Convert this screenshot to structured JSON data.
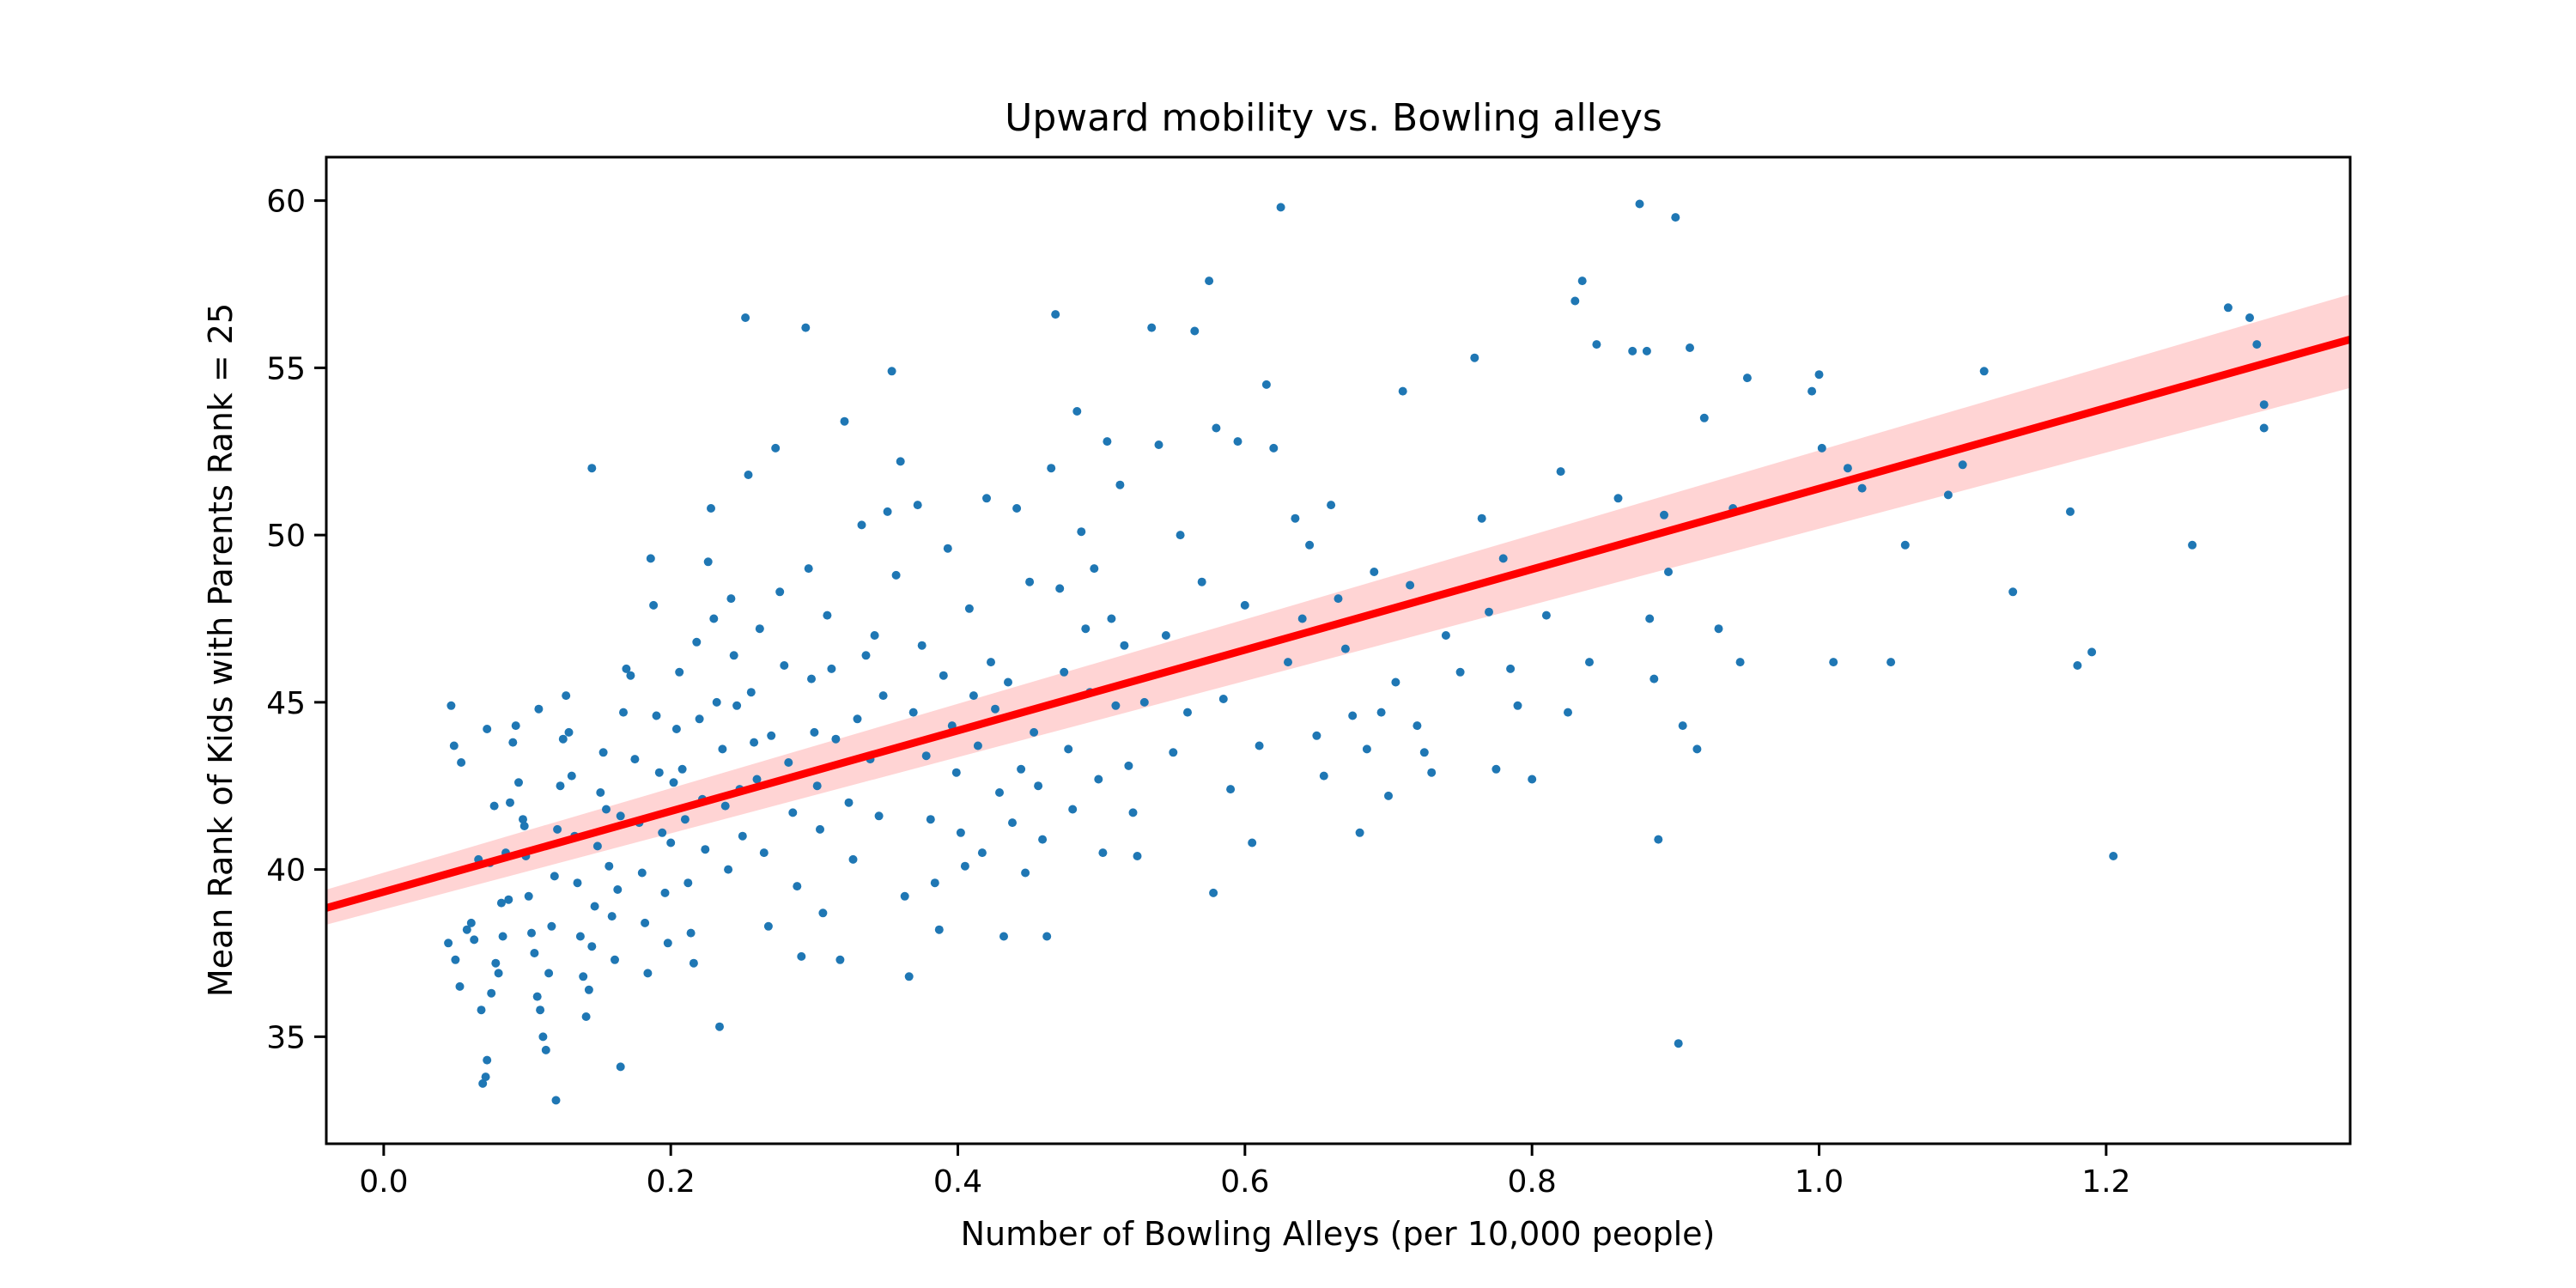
{
  "chart_data": {
    "type": "scatter",
    "title": "Upward mobility vs. Bowling alleys",
    "xlabel": "Number of Bowling Alleys (per 10,000 people)",
    "ylabel": "Mean Rank of Kids with Parents Rank = 25",
    "xlim": [
      -0.04,
      1.37
    ],
    "ylim": [
      31.8,
      61.3
    ],
    "x_ticks": [
      0.0,
      0.2,
      0.4,
      0.6,
      0.8,
      1.0,
      1.2
    ],
    "x_tick_labels": [
      "0.0",
      "0.2",
      "0.4",
      "0.6",
      "0.8",
      "1.0",
      "1.2"
    ],
    "y_ticks": [
      35,
      40,
      45,
      50,
      55,
      60
    ],
    "y_tick_labels": [
      "35",
      "40",
      "45",
      "50",
      "55",
      "60"
    ],
    "grid": false,
    "colors": {
      "points": "#1f77b4",
      "line": "#ff0000",
      "band": "#ffcccc"
    },
    "regression": {
      "x": [
        -0.04,
        1.37
      ],
      "y": [
        38.85,
        55.85
      ],
      "ci_lower": [
        38.35,
        54.4
      ],
      "ci_upper": [
        39.4,
        57.2
      ]
    },
    "points": [
      [
        0.047,
        44.9
      ],
      [
        0.049,
        43.7
      ],
      [
        0.054,
        43.2
      ],
      [
        0.061,
        38.4
      ],
      [
        0.066,
        40.3
      ],
      [
        0.072,
        44.2
      ],
      [
        0.045,
        37.8
      ],
      [
        0.05,
        37.3
      ],
      [
        0.053,
        36.5
      ],
      [
        0.058,
        38.2
      ],
      [
        0.063,
        37.9
      ],
      [
        0.068,
        35.8
      ],
      [
        0.069,
        33.6
      ],
      [
        0.071,
        33.8
      ],
      [
        0.072,
        34.3
      ],
      [
        0.075,
        36.3
      ],
      [
        0.078,
        37.2
      ],
      [
        0.082,
        39.0
      ],
      [
        0.085,
        40.5
      ],
      [
        0.088,
        42.0
      ],
      [
        0.09,
        43.8
      ],
      [
        0.092,
        44.3
      ],
      [
        0.094,
        42.6
      ],
      [
        0.097,
        41.5
      ],
      [
        0.099,
        40.4
      ],
      [
        0.101,
        39.2
      ],
      [
        0.103,
        38.1
      ],
      [
        0.105,
        37.5
      ],
      [
        0.107,
        36.2
      ],
      [
        0.109,
        35.8
      ],
      [
        0.111,
        35.0
      ],
      [
        0.113,
        34.6
      ],
      [
        0.115,
        36.9
      ],
      [
        0.117,
        38.3
      ],
      [
        0.119,
        39.8
      ],
      [
        0.121,
        41.2
      ],
      [
        0.123,
        42.5
      ],
      [
        0.125,
        43.9
      ],
      [
        0.127,
        45.2
      ],
      [
        0.129,
        44.1
      ],
      [
        0.131,
        42.8
      ],
      [
        0.133,
        41.0
      ],
      [
        0.135,
        39.6
      ],
      [
        0.137,
        38.0
      ],
      [
        0.139,
        36.8
      ],
      [
        0.141,
        35.6
      ],
      [
        0.143,
        36.4
      ],
      [
        0.145,
        37.7
      ],
      [
        0.147,
        38.9
      ],
      [
        0.149,
        40.7
      ],
      [
        0.151,
        42.3
      ],
      [
        0.153,
        43.5
      ],
      [
        0.155,
        41.8
      ],
      [
        0.157,
        40.1
      ],
      [
        0.159,
        38.6
      ],
      [
        0.161,
        37.3
      ],
      [
        0.163,
        39.4
      ],
      [
        0.165,
        41.6
      ],
      [
        0.167,
        44.7
      ],
      [
        0.169,
        46.0
      ],
      [
        0.12,
        33.1
      ],
      [
        0.145,
        52.0
      ],
      [
        0.165,
        34.1
      ],
      [
        0.108,
        44.8
      ],
      [
        0.098,
        41.3
      ],
      [
        0.087,
        39.1
      ],
      [
        0.083,
        38.0
      ],
      [
        0.08,
        36.9
      ],
      [
        0.077,
        41.9
      ],
      [
        0.074,
        40.2
      ],
      [
        0.172,
        45.8
      ],
      [
        0.175,
        43.3
      ],
      [
        0.178,
        41.4
      ],
      [
        0.18,
        39.9
      ],
      [
        0.182,
        38.4
      ],
      [
        0.184,
        36.9
      ],
      [
        0.186,
        49.3
      ],
      [
        0.188,
        47.9
      ],
      [
        0.19,
        44.6
      ],
      [
        0.192,
        42.9
      ],
      [
        0.194,
        41.1
      ],
      [
        0.196,
        39.3
      ],
      [
        0.198,
        37.8
      ],
      [
        0.2,
        40.8
      ],
      [
        0.202,
        42.6
      ],
      [
        0.204,
        44.2
      ],
      [
        0.206,
        45.9
      ],
      [
        0.208,
        43.0
      ],
      [
        0.21,
        41.5
      ],
      [
        0.212,
        39.6
      ],
      [
        0.214,
        38.1
      ],
      [
        0.216,
        37.2
      ],
      [
        0.218,
        46.8
      ],
      [
        0.22,
        44.5
      ],
      [
        0.222,
        42.1
      ],
      [
        0.224,
        40.6
      ],
      [
        0.226,
        49.2
      ],
      [
        0.228,
        50.8
      ],
      [
        0.23,
        47.5
      ],
      [
        0.232,
        45.0
      ],
      [
        0.234,
        35.3
      ],
      [
        0.236,
        43.6
      ],
      [
        0.238,
        41.9
      ],
      [
        0.24,
        40.0
      ],
      [
        0.242,
        48.1
      ],
      [
        0.244,
        46.4
      ],
      [
        0.246,
        44.9
      ],
      [
        0.248,
        42.4
      ],
      [
        0.25,
        41.0
      ],
      [
        0.252,
        56.5
      ],
      [
        0.254,
        51.8
      ],
      [
        0.256,
        45.3
      ],
      [
        0.258,
        43.8
      ],
      [
        0.26,
        42.7
      ],
      [
        0.262,
        47.2
      ],
      [
        0.265,
        40.5
      ],
      [
        0.268,
        38.3
      ],
      [
        0.27,
        44.0
      ],
      [
        0.273,
        52.6
      ],
      [
        0.276,
        48.3
      ],
      [
        0.279,
        46.1
      ],
      [
        0.282,
        43.2
      ],
      [
        0.285,
        41.7
      ],
      [
        0.288,
        39.5
      ],
      [
        0.291,
        37.4
      ],
      [
        0.294,
        56.2
      ],
      [
        0.296,
        49.0
      ],
      [
        0.298,
        45.7
      ],
      [
        0.3,
        44.1
      ],
      [
        0.302,
        42.5
      ],
      [
        0.304,
        41.2
      ],
      [
        0.306,
        38.7
      ],
      [
        0.309,
        47.6
      ],
      [
        0.312,
        46.0
      ],
      [
        0.315,
        43.9
      ],
      [
        0.318,
        37.3
      ],
      [
        0.321,
        53.4
      ],
      [
        0.324,
        42.0
      ],
      [
        0.327,
        40.3
      ],
      [
        0.33,
        44.5
      ],
      [
        0.333,
        50.3
      ],
      [
        0.336,
        46.4
      ],
      [
        0.339,
        43.3
      ],
      [
        0.342,
        47.0
      ],
      [
        0.345,
        41.6
      ],
      [
        0.348,
        45.2
      ],
      [
        0.351,
        50.7
      ],
      [
        0.354,
        54.9
      ],
      [
        0.357,
        48.8
      ],
      [
        0.36,
        52.2
      ],
      [
        0.363,
        39.2
      ],
      [
        0.366,
        36.8
      ],
      [
        0.369,
        44.7
      ],
      [
        0.372,
        50.9
      ],
      [
        0.375,
        46.7
      ],
      [
        0.378,
        43.4
      ],
      [
        0.381,
        41.5
      ],
      [
        0.384,
        39.6
      ],
      [
        0.387,
        38.2
      ],
      [
        0.39,
        45.8
      ],
      [
        0.393,
        49.6
      ],
      [
        0.396,
        44.3
      ],
      [
        0.399,
        42.9
      ],
      [
        0.402,
        41.1
      ],
      [
        0.405,
        40.1
      ],
      [
        0.408,
        47.8
      ],
      [
        0.411,
        45.2
      ],
      [
        0.414,
        43.7
      ],
      [
        0.417,
        40.5
      ],
      [
        0.42,
        51.1
      ],
      [
        0.423,
        46.2
      ],
      [
        0.426,
        44.8
      ],
      [
        0.429,
        42.3
      ],
      [
        0.432,
        38.0
      ],
      [
        0.435,
        45.6
      ],
      [
        0.438,
        41.4
      ],
      [
        0.441,
        50.8
      ],
      [
        0.444,
        43.0
      ],
      [
        0.447,
        39.9
      ],
      [
        0.45,
        48.6
      ],
      [
        0.453,
        44.1
      ],
      [
        0.456,
        42.5
      ],
      [
        0.459,
        40.9
      ],
      [
        0.462,
        38.0
      ],
      [
        0.465,
        52.0
      ],
      [
        0.468,
        56.6
      ],
      [
        0.471,
        48.4
      ],
      [
        0.474,
        45.9
      ],
      [
        0.477,
        43.6
      ],
      [
        0.48,
        41.8
      ],
      [
        0.483,
        53.7
      ],
      [
        0.486,
        50.1
      ],
      [
        0.489,
        47.2
      ],
      [
        0.492,
        45.3
      ],
      [
        0.495,
        49.0
      ],
      [
        0.498,
        42.7
      ],
      [
        0.501,
        40.5
      ],
      [
        0.504,
        52.8
      ],
      [
        0.507,
        47.5
      ],
      [
        0.51,
        44.9
      ],
      [
        0.513,
        51.5
      ],
      [
        0.516,
        46.7
      ],
      [
        0.519,
        43.1
      ],
      [
        0.522,
        41.7
      ],
      [
        0.525,
        40.4
      ],
      [
        0.53,
        45.0
      ],
      [
        0.535,
        56.2
      ],
      [
        0.54,
        52.7
      ],
      [
        0.545,
        47.0
      ],
      [
        0.55,
        43.5
      ],
      [
        0.555,
        50.0
      ],
      [
        0.56,
        44.7
      ],
      [
        0.565,
        56.1
      ],
      [
        0.57,
        48.6
      ],
      [
        0.575,
        57.6
      ],
      [
        0.578,
        39.3
      ],
      [
        0.58,
        53.2
      ],
      [
        0.585,
        45.1
      ],
      [
        0.59,
        42.4
      ],
      [
        0.595,
        52.8
      ],
      [
        0.6,
        47.9
      ],
      [
        0.605,
        40.8
      ],
      [
        0.61,
        43.7
      ],
      [
        0.615,
        54.5
      ],
      [
        0.62,
        52.6
      ],
      [
        0.625,
        59.8
      ],
      [
        0.63,
        46.2
      ],
      [
        0.635,
        50.5
      ],
      [
        0.64,
        47.5
      ],
      [
        0.645,
        49.7
      ],
      [
        0.65,
        44.0
      ],
      [
        0.655,
        42.8
      ],
      [
        0.66,
        50.9
      ],
      [
        0.665,
        48.1
      ],
      [
        0.67,
        46.6
      ],
      [
        0.675,
        44.6
      ],
      [
        0.68,
        41.1
      ],
      [
        0.685,
        43.6
      ],
      [
        0.69,
        48.9
      ],
      [
        0.695,
        44.7
      ],
      [
        0.7,
        42.2
      ],
      [
        0.705,
        45.6
      ],
      [
        0.71,
        54.3
      ],
      [
        0.715,
        48.5
      ],
      [
        0.72,
        44.3
      ],
      [
        0.725,
        43.5
      ],
      [
        0.73,
        42.9
      ],
      [
        0.74,
        47.0
      ],
      [
        0.75,
        45.9
      ],
      [
        0.76,
        55.3
      ],
      [
        0.765,
        50.5
      ],
      [
        0.77,
        47.7
      ],
      [
        0.775,
        43.0
      ],
      [
        0.78,
        49.3
      ],
      [
        0.785,
        46.0
      ],
      [
        0.79,
        44.9
      ],
      [
        0.8,
        42.7
      ],
      [
        0.81,
        47.6
      ],
      [
        0.82,
        51.9
      ],
      [
        0.825,
        44.7
      ],
      [
        0.83,
        57.0
      ],
      [
        0.835,
        57.6
      ],
      [
        0.84,
        46.2
      ],
      [
        0.845,
        55.7
      ],
      [
        0.86,
        51.1
      ],
      [
        0.87,
        55.5
      ],
      [
        0.875,
        59.9
      ],
      [
        0.88,
        55.5
      ],
      [
        0.882,
        47.5
      ],
      [
        0.885,
        45.7
      ],
      [
        0.888,
        40.9
      ],
      [
        0.892,
        50.6
      ],
      [
        0.895,
        48.9
      ],
      [
        0.9,
        59.5
      ],
      [
        0.902,
        34.8
      ],
      [
        0.905,
        44.3
      ],
      [
        0.91,
        55.6
      ],
      [
        0.915,
        43.6
      ],
      [
        0.92,
        53.5
      ],
      [
        0.93,
        47.2
      ],
      [
        0.94,
        50.8
      ],
      [
        0.945,
        46.2
      ],
      [
        0.95,
        54.7
      ],
      [
        0.995,
        54.3
      ],
      [
        1.0,
        54.8
      ],
      [
        1.002,
        52.6
      ],
      [
        1.01,
        46.2
      ],
      [
        1.02,
        52.0
      ],
      [
        1.03,
        51.4
      ],
      [
        1.05,
        46.2
      ],
      [
        1.06,
        49.7
      ],
      [
        1.09,
        51.2
      ],
      [
        1.1,
        52.1
      ],
      [
        1.115,
        54.9
      ],
      [
        1.135,
        48.3
      ],
      [
        1.175,
        50.7
      ],
      [
        1.18,
        46.1
      ],
      [
        1.19,
        46.5
      ],
      [
        1.205,
        40.4
      ],
      [
        1.26,
        49.7
      ],
      [
        1.285,
        56.8
      ],
      [
        1.3,
        56.5
      ],
      [
        1.305,
        55.7
      ],
      [
        1.31,
        53.9
      ],
      [
        1.31,
        53.2
      ]
    ]
  }
}
